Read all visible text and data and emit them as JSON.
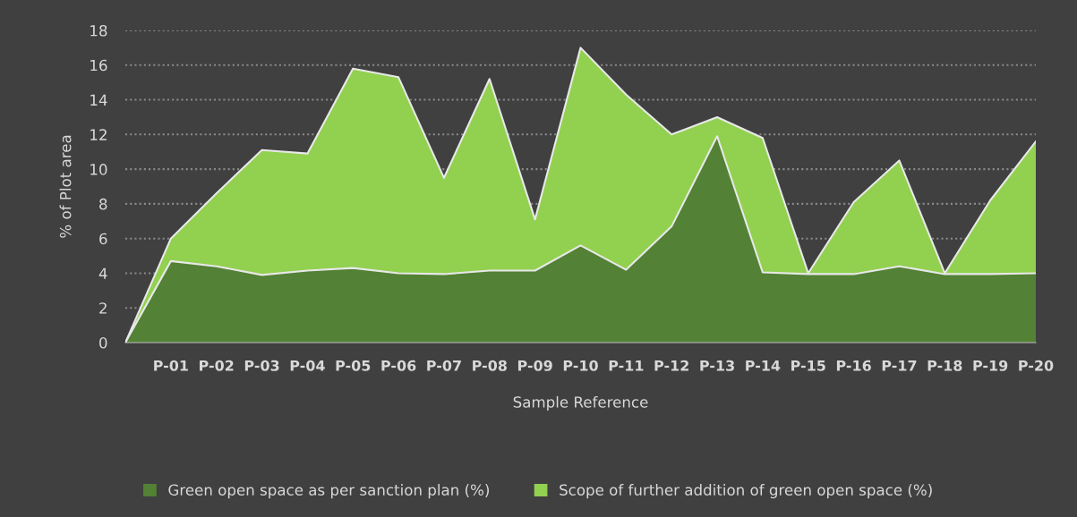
{
  "chart_data": {
    "type": "area",
    "stacked": true,
    "xlabel": "Sample Reference",
    "ylabel": "% of Plot area",
    "categories": [
      null,
      "P-01",
      "P-02",
      "P-03",
      "P-04",
      "P-05",
      "P-06",
      "P-07",
      "P-08",
      "P-09",
      "P-10",
      "P-11",
      "P-12",
      "P-13",
      "P-14",
      "P-15",
      "P-16",
      "P-17",
      "P-18",
      "P-19",
      "P-20"
    ],
    "series": [
      {
        "name": "Green open space as per sanction plan (%)",
        "color": "#538135",
        "values": [
          0,
          4.7,
          4.4,
          3.9,
          4.15,
          4.3,
          4.0,
          3.95,
          4.15,
          4.15,
          5.6,
          4.2,
          6.7,
          11.9,
          4.05,
          3.95,
          3.95,
          4.4,
          3.95,
          3.95,
          4.0
        ]
      },
      {
        "name": "Scope of further addition of green open space (%)",
        "color": "#92d050",
        "values": [
          0,
          1.3,
          4.2,
          7.2,
          6.75,
          11.5,
          11.3,
          5.55,
          11.05,
          2.95,
          11.4,
          10.1,
          5.3,
          1.1,
          7.75,
          0.05,
          4.15,
          6.1,
          0.05,
          4.25,
          7.6
        ]
      }
    ],
    "ylim": [
      0,
      18
    ],
    "yticks": [
      0,
      2,
      4,
      6,
      8,
      10,
      12,
      14,
      16,
      18
    ],
    "grid": "y",
    "legend": "bottom"
  }
}
